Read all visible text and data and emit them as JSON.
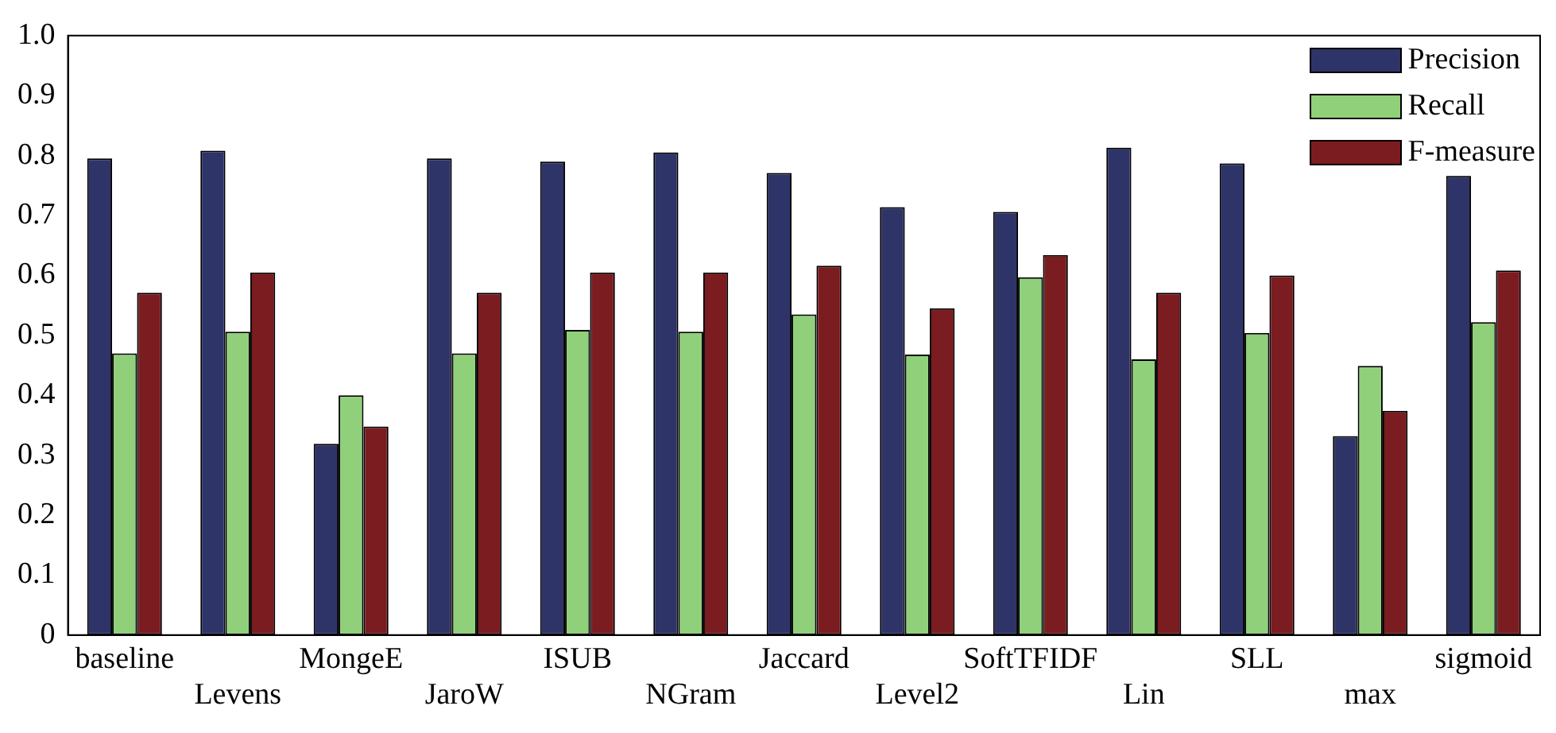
{
  "chart_data": {
    "type": "bar",
    "categories": [
      "baseline",
      "Levens",
      "MongeE",
      "JaroW",
      "ISUB",
      "NGram",
      "Jaccard",
      "Level2",
      "SoftTFIDF",
      "Lin",
      "SLL",
      "max",
      "sigmoid"
    ],
    "series": [
      {
        "name": "Precision",
        "color": "#2e3468",
        "values": [
          0.795,
          0.808,
          0.319,
          0.795,
          0.79,
          0.805,
          0.771,
          0.714,
          0.706,
          0.813,
          0.787,
          0.332,
          0.766
        ]
      },
      {
        "name": "Recall",
        "color": "#90d07a",
        "values": [
          0.47,
          0.506,
          0.4,
          0.47,
          0.509,
          0.506,
          0.535,
          0.468,
          0.597,
          0.46,
          0.504,
          0.449,
          0.522
        ]
      },
      {
        "name": "F-measure",
        "color": "#7b1c20",
        "values": [
          0.571,
          0.605,
          0.348,
          0.571,
          0.605,
          0.605,
          0.616,
          0.545,
          0.634,
          0.571,
          0.6,
          0.374,
          0.608
        ]
      }
    ],
    "ylim": [
      0,
      1
    ],
    "yticks": [
      0,
      0.1,
      0.2,
      0.3,
      0.4,
      0.5,
      0.6,
      0.7,
      0.8,
      0.9,
      {
        "value": 1,
        "label": "1.0"
      }
    ],
    "grid": false,
    "legend": "top right"
  }
}
